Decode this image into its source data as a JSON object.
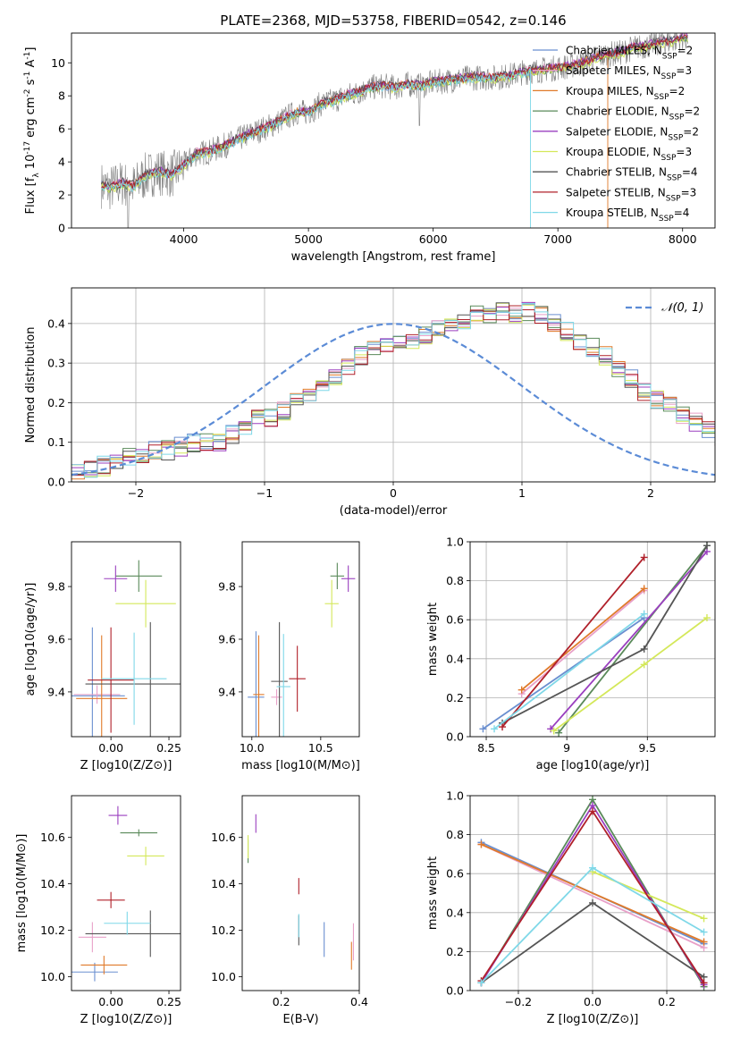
{
  "figure": {
    "title": "PLATE=2368, MJD=53758, FIBERID=0542, z=0.146"
  },
  "legend": [
    {
      "model": "Chabrier MILES",
      "nssp": 2,
      "color": "#6a8fd0"
    },
    {
      "model": "Salpeter MILES",
      "nssp": 3,
      "color": "#e8a0c8"
    },
    {
      "model": "Kroupa MILES",
      "nssp": 2,
      "color": "#e07a2a"
    },
    {
      "model": "Chabrier ELODIE",
      "nssp": 2,
      "color": "#5a8a5a"
    },
    {
      "model": "Salpeter ELODIE",
      "nssp": 2,
      "color": "#9a3fbf"
    },
    {
      "model": "Kroupa ELODIE",
      "nssp": 3,
      "color": "#d4e85a"
    },
    {
      "model": "Chabrier STELIB",
      "nssp": 4,
      "color": "#555555"
    },
    {
      "model": "Salpeter STELIB",
      "nssp": 3,
      "color": "#b0202a"
    },
    {
      "model": "Kroupa STELIB",
      "nssp": 4,
      "color": "#7fd8e8"
    }
  ],
  "chart_data": [
    {
      "id": "spectrum",
      "type": "line",
      "xlabel": "wavelength [Angstrom, rest frame]",
      "ylabel": "Flux [f_λ 10^-17 erg cm^-2 s^-1 A^-1]",
      "xlim": [
        3100,
        8260
      ],
      "ylim": [
        0,
        11.8
      ],
      "xticks": [
        4000,
        5000,
        6000,
        7000,
        8000
      ],
      "yticks": [
        0,
        2,
        4,
        6,
        8,
        10
      ],
      "observed": {
        "x": [
          3340,
          3400,
          3500,
          3600,
          3700,
          3800,
          3900,
          4000,
          4100,
          4200,
          4300,
          4400,
          4500,
          4600,
          4700,
          4800,
          4900,
          5000,
          5100,
          5200,
          5300,
          5400,
          5500,
          5600,
          5700,
          5800,
          5900,
          6000,
          6100,
          6200,
          6300,
          6400,
          6500,
          6600,
          6700,
          6800,
          6900,
          7000,
          7100,
          7200,
          7300,
          7400,
          7500,
          7600,
          7700,
          7800,
          7900,
          8000
        ],
        "y": [
          2.6,
          2.4,
          2.7,
          2.5,
          3.2,
          3.4,
          3.2,
          3.8,
          4.5,
          4.6,
          4.9,
          5.2,
          5.6,
          5.9,
          6.2,
          6.6,
          7.0,
          7.0,
          7.5,
          7.7,
          8.0,
          8.2,
          8.5,
          8.6,
          8.5,
          8.7,
          8.6,
          8.8,
          8.9,
          9.0,
          9.1,
          9.1,
          9.1,
          9.2,
          9.4,
          9.5,
          9.6,
          9.7,
          9.8,
          10.0,
          10.3,
          10.5,
          10.6,
          10.9,
          11.0,
          11.2,
          11.3,
          11.5
        ]
      },
      "models_y_offsets": [
        0.0,
        0.1,
        0.05,
        -0.05,
        0.08,
        -0.1,
        0.12,
        0.03,
        -0.08
      ],
      "models_end_x": [
        8040,
        8040,
        7400,
        8040,
        8040,
        8040,
        8040,
        8040,
        6780
      ]
    },
    {
      "id": "residuals",
      "type": "histogram",
      "xlabel": "(data-model)/error",
      "ylabel": "Normed distribution",
      "xlim": [
        -2.5,
        2.5
      ],
      "ylim": [
        0,
        0.49
      ],
      "xticks": [
        -2,
        -1,
        0,
        1,
        2
      ],
      "yticks": [
        0.0,
        0.1,
        0.2,
        0.3,
        0.4
      ],
      "normal_curve_label": "𝒩(0, 1)",
      "bin_width": 0.1,
      "bin_start": -2.5,
      "base_hist": [
        0.02,
        0.03,
        0.04,
        0.05,
        0.06,
        0.07,
        0.08,
        0.08,
        0.09,
        0.1,
        0.1,
        0.1,
        0.12,
        0.14,
        0.16,
        0.16,
        0.18,
        0.2,
        0.22,
        0.25,
        0.26,
        0.29,
        0.32,
        0.33,
        0.35,
        0.36,
        0.36,
        0.37,
        0.39,
        0.4,
        0.41,
        0.42,
        0.42,
        0.43,
        0.42,
        0.43,
        0.42,
        0.4,
        0.38,
        0.35,
        0.34,
        0.32,
        0.29,
        0.26,
        0.23,
        0.21,
        0.19,
        0.17,
        0.15,
        0.13,
        0.11,
        0.1,
        0.08,
        0.07,
        0.06,
        0.05,
        0.05,
        0.04,
        0.04,
        0.03
      ]
    },
    {
      "id": "age_vs_Z",
      "type": "errorbar",
      "xlabel": "Z [log10(Z/Z⊙)]",
      "ylabel": "age [log10(age/yr)]",
      "xlim": [
        -0.17,
        0.3
      ],
      "ylim": [
        9.23,
        9.97
      ],
      "xticks": [
        0.0,
        0.25
      ],
      "xtick_labels": [
        "0.00",
        "0.25"
      ],
      "yticks": [
        9.4,
        9.6,
        9.8
      ],
      "points": [
        {
          "x": -0.08,
          "y": 9.385,
          "xerr": 0.14,
          "yerr": 0.52,
          "c": 0
        },
        {
          "x": -0.06,
          "y": 9.39,
          "xerr": 0.1,
          "yerr": 0.07,
          "c": 1
        },
        {
          "x": -0.04,
          "y": 9.375,
          "xerr": 0.11,
          "yerr": 0.48,
          "c": 2
        },
        {
          "x": 0.12,
          "y": 9.84,
          "xerr": 0.1,
          "yerr": 0.12,
          "c": 3
        },
        {
          "x": 0.02,
          "y": 9.83,
          "xerr": 0.05,
          "yerr": 0.1,
          "c": 4
        },
        {
          "x": 0.15,
          "y": 9.735,
          "xerr": 0.13,
          "yerr": 0.18,
          "c": 5
        },
        {
          "x": 0.17,
          "y": 9.43,
          "xerr": 0.28,
          "yerr": 0.47,
          "c": 6
        },
        {
          "x": 0.0,
          "y": 9.445,
          "xerr": 0.1,
          "yerr": 0.4,
          "c": 7
        },
        {
          "x": 0.1,
          "y": 9.45,
          "xerr": 0.14,
          "yerr": 0.35,
          "c": 8
        }
      ]
    },
    {
      "id": "age_vs_mass",
      "type": "errorbar",
      "xlabel": "mass [log10(M/M⊙)]",
      "ylabel": "",
      "xlim": [
        9.93,
        10.78
      ],
      "ylim": [
        9.23,
        9.97
      ],
      "xticks": [
        10.0,
        10.5
      ],
      "xtick_labels": [
        "10.0",
        "10.5"
      ],
      "yticks": [
        9.4,
        9.6,
        9.8
      ],
      "points": [
        {
          "x": 10.03,
          "y": 9.38,
          "xerr": 0.06,
          "yerr": 0.5,
          "c": 0
        },
        {
          "x": 10.18,
          "y": 9.38,
          "xerr": 0.04,
          "yerr": 0.06,
          "c": 1
        },
        {
          "x": 10.05,
          "y": 9.39,
          "xerr": 0.04,
          "yerr": 0.45,
          "c": 2
        },
        {
          "x": 10.62,
          "y": 9.84,
          "xerr": 0.05,
          "yerr": 0.1,
          "c": 3
        },
        {
          "x": 10.7,
          "y": 9.83,
          "xerr": 0.05,
          "yerr": 0.1,
          "c": 4
        },
        {
          "x": 10.58,
          "y": 9.735,
          "xerr": 0.05,
          "yerr": 0.18,
          "c": 5
        },
        {
          "x": 10.2,
          "y": 9.44,
          "xerr": 0.06,
          "yerr": 0.45,
          "c": 6
        },
        {
          "x": 10.33,
          "y": 9.45,
          "xerr": 0.06,
          "yerr": 0.25,
          "c": 7
        },
        {
          "x": 10.23,
          "y": 9.42,
          "xerr": 0.05,
          "yerr": 0.4,
          "c": 8
        }
      ]
    },
    {
      "id": "weight_vs_age",
      "type": "line",
      "xlabel": "age [log10(age/yr)]",
      "ylabel": "mass weight",
      "xlim": [
        8.4,
        9.92
      ],
      "ylim": [
        0.0,
        1.0
      ],
      "xticks": [
        8.5,
        9.0,
        9.5
      ],
      "yticks": [
        0.0,
        0.2,
        0.4,
        0.6,
        0.8,
        1.0
      ],
      "series": [
        {
          "c": 0,
          "x": [
            8.48,
            9.48
          ],
          "y": [
            0.04,
            0.61
          ]
        },
        {
          "c": 1,
          "x": [
            8.72,
            9.48
          ],
          "y": [
            0.22,
            0.75
          ]
        },
        {
          "c": 2,
          "x": [
            8.72,
            9.48
          ],
          "y": [
            0.24,
            0.76
          ]
        },
        {
          "c": 3,
          "x": [
            8.95,
            9.87
          ],
          "y": [
            0.02,
            0.98
          ]
        },
        {
          "c": 4,
          "x": [
            8.9,
            9.87
          ],
          "y": [
            0.04,
            0.95
          ]
        },
        {
          "c": 5,
          "x": [
            8.92,
            9.48,
            9.87
          ],
          "y": [
            0.03,
            0.37,
            0.61
          ]
        },
        {
          "c": 6,
          "x": [
            8.6,
            9.48,
            9.87
          ],
          "y": [
            0.07,
            0.45,
            0.98
          ]
        },
        {
          "c": 7,
          "x": [
            8.6,
            9.48
          ],
          "y": [
            0.05,
            0.92
          ]
        },
        {
          "c": 8,
          "x": [
            8.55,
            9.48
          ],
          "y": [
            0.04,
            0.63
          ]
        }
      ]
    },
    {
      "id": "mass_vs_Z",
      "type": "errorbar",
      "xlabel": "Z [log10(Z/Z⊙)]",
      "ylabel": "mass [log10(M/M⊙)]",
      "xlim": [
        -0.17,
        0.3
      ],
      "ylim": [
        9.94,
        10.78
      ],
      "xticks": [
        0.0,
        0.25
      ],
      "xtick_labels": [
        "0.00",
        "0.25"
      ],
      "yticks": [
        10.0,
        10.2,
        10.4,
        10.6
      ],
      "points": [
        {
          "x": -0.07,
          "y": 10.02,
          "xerr": 0.1,
          "yerr": 0.08,
          "c": 0
        },
        {
          "x": -0.08,
          "y": 10.17,
          "xerr": 0.06,
          "yerr": 0.13,
          "c": 1
        },
        {
          "x": -0.03,
          "y": 10.05,
          "xerr": 0.1,
          "yerr": 0.08,
          "c": 2
        },
        {
          "x": 0.12,
          "y": 10.62,
          "xerr": 0.08,
          "yerr": 0.03,
          "c": 3
        },
        {
          "x": 0.03,
          "y": 10.695,
          "xerr": 0.04,
          "yerr": 0.08,
          "c": 4
        },
        {
          "x": 0.15,
          "y": 10.52,
          "xerr": 0.08,
          "yerr": 0.08,
          "c": 5
        },
        {
          "x": 0.17,
          "y": 10.185,
          "xerr": 0.28,
          "yerr": 0.2,
          "c": 6
        },
        {
          "x": 0.0,
          "y": 10.33,
          "xerr": 0.06,
          "yerr": 0.07,
          "c": 7
        },
        {
          "x": 0.07,
          "y": 10.23,
          "xerr": 0.1,
          "yerr": 0.1,
          "c": 8
        }
      ]
    },
    {
      "id": "mass_vs_ebv",
      "type": "errorbar",
      "xlabel": "E(B-V)",
      "ylabel": "",
      "xlim": [
        0.1,
        0.4
      ],
      "ylim": [
        9.94,
        10.78
      ],
      "xticks": [
        0.2,
        0.4
      ],
      "xtick_labels": [
        "0.2",
        "0.4"
      ],
      "yticks": [
        10.0,
        10.2,
        10.4,
        10.6
      ],
      "points": [
        {
          "x": 0.31,
          "y": 10.16,
          "xerr": 0.0,
          "yerr": 0.15,
          "c": 0
        },
        {
          "x": 0.385,
          "y": 10.15,
          "xerr": 0.0,
          "yerr": 0.16,
          "c": 1
        },
        {
          "x": 0.38,
          "y": 10.09,
          "xerr": 0.0,
          "yerr": 0.12,
          "c": 2
        },
        {
          "x": 0.115,
          "y": 10.54,
          "xerr": 0.0,
          "yerr": 0.1,
          "c": 3
        },
        {
          "x": 0.135,
          "y": 10.66,
          "xerr": 0.0,
          "yerr": 0.08,
          "c": 4
        },
        {
          "x": 0.115,
          "y": 10.56,
          "xerr": 0.0,
          "yerr": 0.1,
          "c": 5
        },
        {
          "x": 0.245,
          "y": 10.2,
          "xerr": 0.0,
          "yerr": 0.13,
          "c": 6
        },
        {
          "x": 0.245,
          "y": 10.39,
          "xerr": 0.0,
          "yerr": 0.07,
          "c": 7
        },
        {
          "x": 0.245,
          "y": 10.22,
          "xerr": 0.0,
          "yerr": 0.1,
          "c": 8
        }
      ]
    },
    {
      "id": "weight_vs_Z",
      "type": "line",
      "xlabel": "Z [log10(Z/Z⊙)]",
      "ylabel": "mass weight",
      "xlim": [
        -0.33,
        0.33
      ],
      "ylim": [
        0.0,
        1.0
      ],
      "xticks": [
        -0.2,
        0.0,
        0.2
      ],
      "xtick_labels": [
        "−0.2",
        "0.0",
        "0.2"
      ],
      "yticks": [
        0.0,
        0.2,
        0.4,
        0.6,
        0.8,
        1.0
      ],
      "series": [
        {
          "c": 0,
          "x": [
            -0.3,
            0.3
          ],
          "y": [
            0.76,
            0.24
          ]
        },
        {
          "c": 1,
          "x": [
            -0.3,
            0.3
          ],
          "y": [
            0.75,
            0.22
          ]
        },
        {
          "c": 2,
          "x": [
            -0.3,
            0.3
          ],
          "y": [
            0.75,
            0.25
          ]
        },
        {
          "c": 3,
          "x": [
            -0.3,
            0.0,
            0.3
          ],
          "y": [
            0.04,
            0.98,
            0.02
          ]
        },
        {
          "c": 4,
          "x": [
            -0.3,
            0.0,
            0.3
          ],
          "y": [
            0.04,
            0.95,
            0.03
          ]
        },
        {
          "c": 5,
          "x": [
            0.0,
            0.3
          ],
          "y": [
            0.61,
            0.37
          ]
        },
        {
          "c": 6,
          "x": [
            -0.3,
            0.0,
            0.3
          ],
          "y": [
            0.04,
            0.45,
            0.07
          ]
        },
        {
          "c": 7,
          "x": [
            -0.3,
            0.0,
            0.3
          ],
          "y": [
            0.05,
            0.92,
            0.04
          ]
        },
        {
          "c": 8,
          "x": [
            -0.3,
            0.0,
            0.3
          ],
          "y": [
            0.04,
            0.63,
            0.3
          ]
        }
      ]
    }
  ]
}
